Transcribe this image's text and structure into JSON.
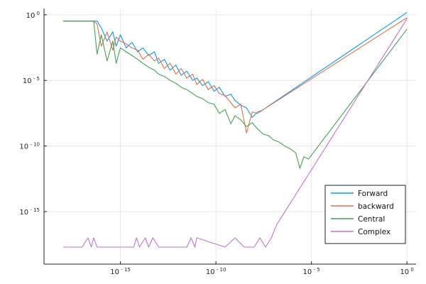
{
  "chart_data": {
    "type": "line",
    "title": "",
    "xlabel": "",
    "ylabel": "",
    "xscale": "log10",
    "yscale": "log10",
    "xlim": [
      1e-19,
      3.0
    ],
    "ylim": [
      1e-19,
      3.0
    ],
    "grid": true,
    "legend_position": "bottom-right",
    "x_ticks": [
      {
        "value": 1e-15,
        "base": "10",
        "exp": "- 15"
      },
      {
        "value": 1e-10,
        "base": "10",
        "exp": "- 10"
      },
      {
        "value": 1e-05,
        "base": "10",
        "exp": "- 5"
      },
      {
        "value": 1.0,
        "base": "10",
        "exp": "0"
      }
    ],
    "y_ticks": [
      {
        "value": 1.0,
        "base": "10",
        "exp": "0"
      },
      {
        "value": 1e-05,
        "base": "10",
        "exp": "- 5"
      },
      {
        "value": 1e-10,
        "base": "10",
        "exp": "- 10"
      },
      {
        "value": 1e-15,
        "base": "10",
        "exp": "- 15"
      }
    ],
    "series": [
      {
        "name": "Forward",
        "color": "#009AFA",
        "x": [
          1e-18,
          2e-17,
          4e-17,
          6e-17,
          1e-16,
          2e-16,
          4e-16,
          6e-16,
          1e-15,
          2e-15,
          4e-15,
          8e-15,
          1.5e-14,
          3e-14,
          6e-14,
          1e-13,
          2e-13,
          4e-13,
          8e-13,
          1.5e-12,
          3e-12,
          6e-12,
          1e-11,
          2e-11,
          4e-11,
          8e-11,
          1.5e-10,
          3e-10,
          6e-10,
          1e-09,
          2e-09,
          4e-09,
          8e-09,
          1.5e-08,
          2.5e-08,
          1.0
        ],
        "y": [
          0.33,
          0.33,
          0.33,
          0.33,
          0.1,
          0.01,
          0.05,
          0.004,
          0.03,
          0.003,
          0.008,
          0.0015,
          0.003,
          0.0008,
          0.0015,
          0.0002,
          0.0004,
          6e-05,
          0.00015,
          2.5e-05,
          5e-05,
          1e-05,
          1.5e-05,
          4e-06,
          8e-06,
          1.5e-06,
          3e-06,
          6e-07,
          9e-07,
          3e-07,
          1.3e-07,
          8e-08,
          1.5e-08,
          4e-08,
          5e-08,
          1.5
        ]
      },
      {
        "name": "backward",
        "color": "#E26F46",
        "x": [
          1e-18,
          2e-17,
          4e-17,
          6e-17,
          1e-16,
          2e-16,
          4e-16,
          6e-16,
          1e-15,
          2e-15,
          4e-15,
          8e-15,
          1.5e-14,
          3e-14,
          6e-14,
          1e-13,
          2e-13,
          4e-13,
          8e-13,
          1.5e-12,
          3e-12,
          6e-12,
          1e-11,
          2e-11,
          4e-11,
          8e-11,
          1.5e-10,
          3e-10,
          6e-10,
          1e-09,
          2e-09,
          4e-09,
          8e-09,
          1.5e-08,
          2.5e-08,
          1.0
        ],
        "y": [
          0.33,
          0.33,
          0.33,
          0.2,
          0.004,
          0.05,
          0.002,
          0.02,
          0.01,
          0.006,
          0.003,
          0.002,
          0.0004,
          0.001,
          0.0003,
          0.0005,
          8e-05,
          0.0002,
          3e-05,
          8e-05,
          1.5e-05,
          3e-05,
          5e-06,
          1.2e-05,
          2e-06,
          4e-06,
          1e-06,
          7e-07,
          2e-07,
          8e-08,
          1.5e-07,
          1e-09,
          4e-08,
          3e-08,
          5e-08,
          0.6
        ]
      },
      {
        "name": "Central",
        "color": "#3EA44E",
        "x": [
          1e-18,
          2e-17,
          4e-17,
          6e-17,
          1e-16,
          2e-16,
          4e-16,
          6e-16,
          1e-15,
          2e-15,
          4e-15,
          8e-15,
          1.5e-14,
          3e-14,
          6e-14,
          1e-13,
          2e-13,
          4e-13,
          8e-13,
          1.5e-12,
          3e-12,
          6e-12,
          1e-11,
          2e-11,
          4e-11,
          8e-11,
          1.5e-10,
          3e-10,
          6e-10,
          1e-09,
          2e-09,
          4e-09,
          8e-09,
          1.5e-08,
          3e-08,
          6e-08,
          1e-07,
          2e-07,
          4e-07,
          8e-07,
          1.5e-06,
          2.5e-06,
          4e-06,
          7e-06,
          1.0
        ],
        "y": [
          0.33,
          0.33,
          0.33,
          0.001,
          0.03,
          0.0003,
          0.01,
          0.0002,
          0.003,
          0.0015,
          0.0008,
          0.0004,
          0.0002,
          0.0001,
          6e-05,
          3e-05,
          2e-05,
          1e-05,
          6e-06,
          3e-06,
          2e-06,
          1e-06,
          6e-07,
          4e-07,
          2e-07,
          1.5e-07,
          3e-08,
          6e-08,
          5e-09,
          2e-08,
          1e-08,
          3e-09,
          6e-09,
          2e-09,
          8e-10,
          6e-10,
          3e-10,
          2e-10,
          1e-10,
          6e-11,
          3e-11,
          2e-12,
          1.5e-11,
          1e-11,
          0.08
        ]
      },
      {
        "name": "Complex",
        "color": "#C271D2",
        "x": [
          1e-18,
          1e-17,
          2e-17,
          3e-17,
          4e-17,
          6e-17,
          2e-16,
          5e-15,
          7e-15,
          1e-14,
          2e-14,
          3e-14,
          5e-14,
          1e-13,
          3e-12,
          5e-12,
          8e-12,
          1e-11,
          3e-10,
          1e-09,
          3e-09,
          1e-08,
          2e-08,
          4e-08,
          8e-08,
          1.5e-07,
          1.0
        ],
        "y": [
          2e-18,
          2e-18,
          1e-17,
          2e-18,
          1e-17,
          2e-18,
          2e-18,
          2e-18,
          1e-17,
          2e-18,
          1e-17,
          2e-18,
          1e-17,
          2e-18,
          2e-18,
          1e-17,
          2e-18,
          1e-17,
          2e-18,
          1e-17,
          2e-18,
          2e-18,
          1e-17,
          2e-18,
          1e-17,
          1e-16,
          0.5
        ]
      }
    ]
  }
}
